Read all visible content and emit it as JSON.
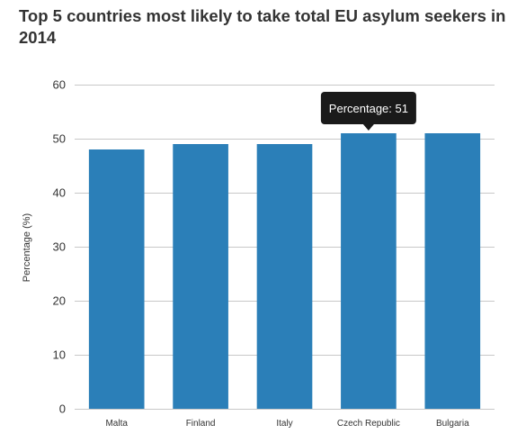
{
  "chart_data": {
    "type": "bar",
    "title": "Top 5 countries most likely to take total EU asylum seekers in 2014",
    "ylabel": "Percentage (%)",
    "xlabel": "",
    "categories": [
      "Malta",
      "Finland",
      "Italy",
      "Czech Republic",
      "Bulgaria"
    ],
    "values": [
      48,
      49,
      49,
      51,
      51
    ],
    "ylim": [
      0,
      60
    ],
    "yticks": [
      0,
      10,
      20,
      30,
      40,
      50,
      60
    ],
    "grid": true,
    "bar_color": "#2b7fb8",
    "tooltip": {
      "category": "Czech Republic",
      "label": "Percentage:",
      "value": 51
    }
  }
}
